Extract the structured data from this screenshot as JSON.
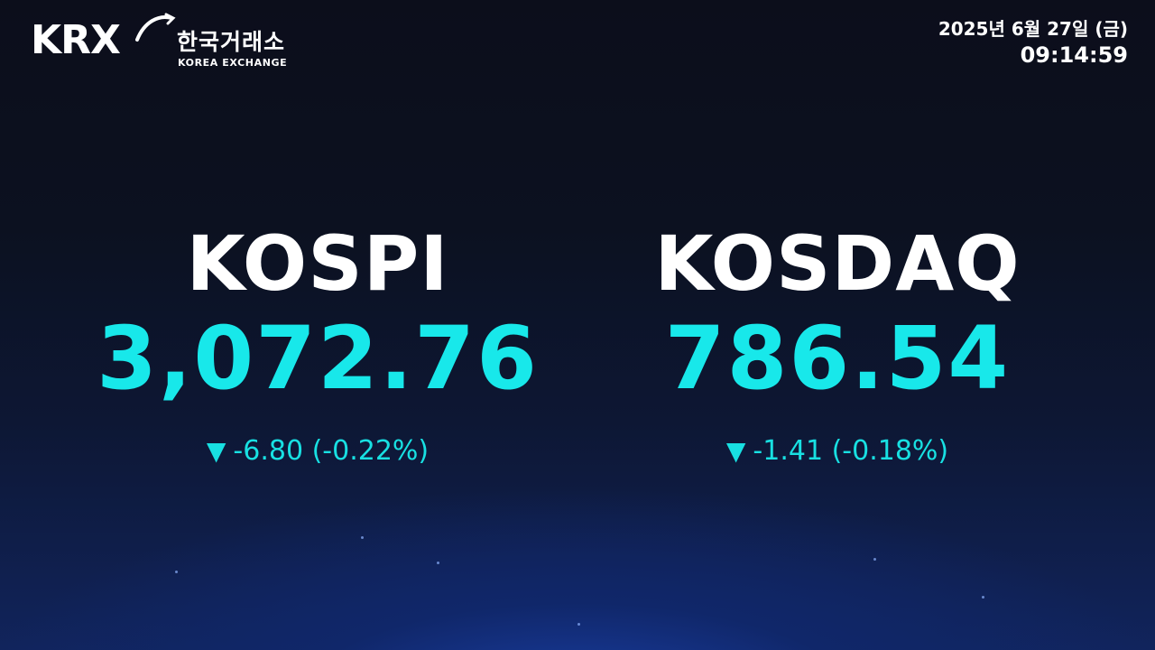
{
  "logo": {
    "mark": "KRX",
    "korean_name": "한국거래소",
    "english_name": "KOREA EXCHANGE"
  },
  "header": {
    "date": "2025년 6월 27일 (금)",
    "time": "09:14:59"
  },
  "indices": [
    {
      "name": "KOSPI",
      "value": "3,072.76",
      "direction_icon": "down-triangle-icon",
      "arrow": "▼",
      "change": "-6.80 (-0.22%)"
    },
    {
      "name": "KOSDAQ",
      "value": "786.54",
      "direction_icon": "down-triangle-icon",
      "arrow": "▼",
      "change": "-1.41 (-0.18%)"
    }
  ],
  "colors": {
    "value": "#18e8ea",
    "change": "#18e0e2",
    "label": "#ffffff",
    "background_top": "#0c0e1b",
    "background_bottom": "#11245c"
  }
}
